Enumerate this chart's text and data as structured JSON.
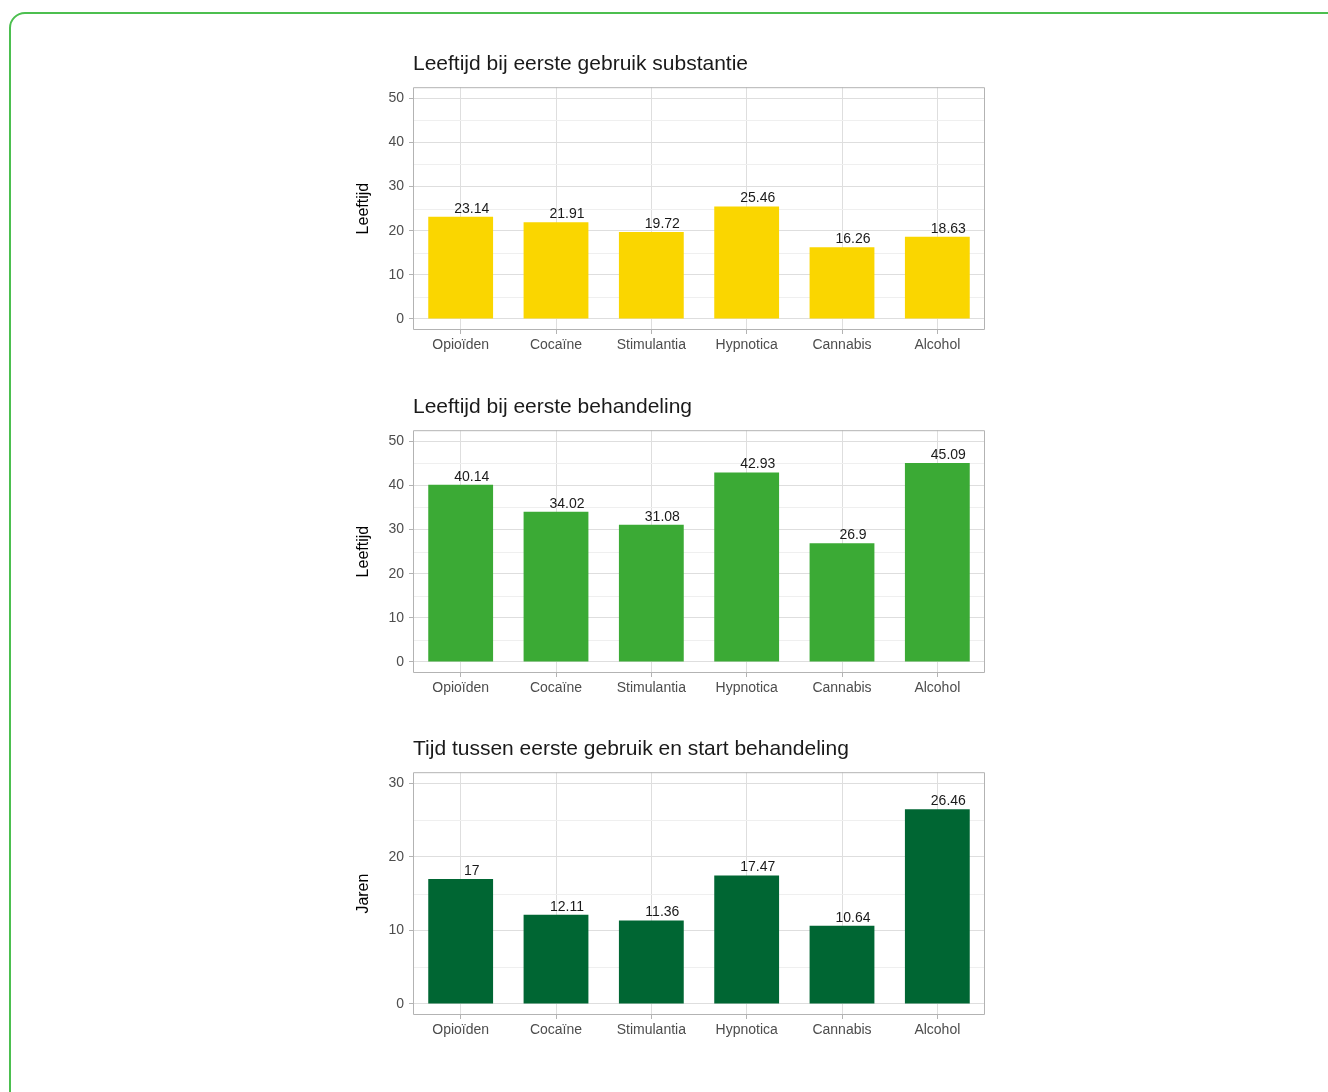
{
  "chart_data": [
    {
      "type": "bar",
      "title": "Leeftijd bij eerste gebruik substantie",
      "ylabel": "Leeftijd",
      "categories": [
        "Opioïden",
        "Cocaïne",
        "Stimulantia",
        "Hypnotica",
        "Cannabis",
        "Alcohol"
      ],
      "values": [
        23.14,
        21.91,
        19.72,
        25.46,
        16.26,
        18.63
      ],
      "color": "#fad600",
      "ylim": [
        -2.5,
        52.5
      ],
      "yticks": [
        0,
        10,
        20,
        30,
        40,
        50
      ],
      "grid": true,
      "data_labels": true
    },
    {
      "type": "bar",
      "title": "Leeftijd bij eerste behandeling",
      "ylabel": "Leeftijd",
      "categories": [
        "Opioïden",
        "Cocaïne",
        "Stimulantia",
        "Hypnotica",
        "Cannabis",
        "Alcohol"
      ],
      "values": [
        40.14,
        34.02,
        31.08,
        42.93,
        26.9,
        45.09
      ],
      "color": "#3baa35",
      "ylim": [
        -2.5,
        52.5
      ],
      "yticks": [
        0,
        10,
        20,
        30,
        40,
        50
      ],
      "grid": true,
      "data_labels": true
    },
    {
      "type": "bar",
      "title": "Tijd tussen eerste gebruik en start behandeling",
      "ylabel": "Jaren",
      "categories": [
        "Opioïden",
        "Cocaïne",
        "Stimulantia",
        "Hypnotica",
        "Cannabis",
        "Alcohol"
      ],
      "values": [
        17,
        12.11,
        11.36,
        17.47,
        10.64,
        26.46
      ],
      "color": "#006633",
      "ylim": [
        -1.5,
        31.5
      ],
      "yticks": [
        0,
        10,
        20,
        30
      ],
      "grid": true,
      "data_labels": true
    }
  ]
}
